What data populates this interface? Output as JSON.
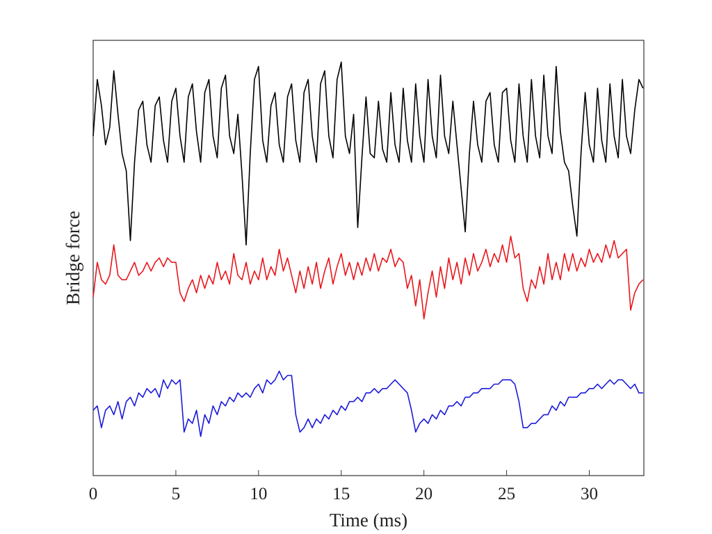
{
  "chart_data": {
    "type": "line",
    "title": "",
    "xlabel": "Time (ms)",
    "ylabel": "Bridge force",
    "xlim": [
      0,
      33.3
    ],
    "ylim": [
      0,
      10
    ],
    "grid": false,
    "legend": "none",
    "xticks": [
      0,
      5,
      10,
      15,
      20,
      25,
      30
    ],
    "xtick_labels": [
      "0",
      "5",
      "10",
      "15",
      "20",
      "25",
      "30"
    ],
    "x_start": 0,
    "x_step": 0.25,
    "series": [
      {
        "name": "black trace",
        "color": "#000000",
        "values": [
          7.8,
          9.1,
          8.5,
          7.6,
          8.0,
          9.3,
          8.3,
          7.4,
          7.0,
          5.4,
          7.2,
          8.4,
          8.6,
          7.6,
          7.2,
          8.5,
          8.7,
          7.7,
          7.2,
          8.6,
          8.9,
          7.8,
          7.2,
          8.7,
          9.0,
          7.9,
          7.2,
          8.8,
          9.1,
          7.8,
          7.3,
          8.9,
          9.2,
          7.8,
          7.4,
          8.3,
          6.9,
          5.3,
          7.4,
          9.1,
          9.4,
          7.7,
          7.2,
          8.5,
          8.8,
          7.6,
          7.2,
          8.7,
          9.0,
          7.7,
          7.2,
          8.8,
          9.1,
          7.8,
          7.2,
          9.0,
          9.3,
          7.8,
          7.3,
          9.1,
          9.5,
          7.8,
          7.4,
          8.3,
          5.7,
          7.3,
          8.7,
          7.4,
          7.3,
          8.6,
          7.5,
          7.2,
          8.8,
          7.6,
          7.2,
          8.9,
          7.7,
          7.2,
          9.0,
          7.8,
          7.2,
          9.1,
          7.8,
          7.3,
          9.2,
          7.8,
          7.4,
          8.6,
          7.6,
          6.6,
          5.6,
          7.4,
          8.6,
          7.6,
          7.2,
          8.6,
          8.8,
          7.6,
          7.2,
          8.8,
          8.9,
          7.7,
          7.2,
          9.0,
          7.8,
          7.2,
          9.1,
          7.8,
          7.3,
          9.2,
          7.8,
          7.4,
          9.4,
          7.9,
          7.2,
          7.0,
          6.2,
          5.5,
          7.4,
          8.8,
          7.6,
          7.2,
          8.9,
          7.7,
          7.2,
          9.0,
          7.8,
          7.3,
          9.1,
          7.8,
          7.4,
          8.4,
          9.1,
          8.9
        ]
      },
      {
        "name": "red trace",
        "color": "#e8161b",
        "values": [
          4.1,
          4.9,
          4.5,
          4.4,
          4.6,
          5.3,
          4.6,
          4.5,
          4.5,
          4.7,
          4.9,
          4.6,
          4.7,
          4.9,
          4.7,
          4.9,
          5.0,
          4.8,
          5.0,
          4.9,
          4.9,
          4.2,
          4.0,
          4.3,
          4.5,
          4.2,
          4.6,
          4.3,
          4.6,
          4.4,
          4.9,
          4.5,
          4.7,
          4.4,
          5.1,
          4.6,
          4.5,
          4.9,
          4.4,
          4.7,
          4.5,
          5.0,
          4.5,
          4.8,
          4.6,
          5.2,
          4.7,
          5.0,
          4.6,
          4.2,
          4.7,
          4.3,
          4.8,
          4.4,
          4.9,
          4.3,
          4.7,
          5.0,
          4.4,
          4.8,
          5.1,
          4.6,
          4.9,
          4.5,
          4.9,
          4.6,
          5.0,
          4.7,
          5.1,
          4.7,
          5.0,
          4.9,
          5.2,
          4.8,
          5.0,
          4.9,
          4.3,
          4.6,
          3.9,
          4.5,
          3.6,
          4.2,
          4.7,
          4.1,
          4.8,
          4.3,
          5.0,
          4.5,
          4.9,
          4.4,
          5.0,
          4.6,
          5.1,
          4.7,
          4.9,
          5.2,
          4.8,
          5.1,
          4.9,
          5.3,
          4.9,
          5.5,
          5.0,
          5.1,
          4.3,
          4.0,
          4.5,
          4.3,
          4.8,
          4.4,
          5.1,
          4.5,
          4.9,
          4.5,
          5.1,
          4.7,
          5.1,
          4.7,
          5.0,
          4.8,
          5.2,
          4.9,
          5.1,
          4.9,
          5.3,
          5.0,
          5.4,
          5.0,
          5.1,
          5.2,
          3.8,
          4.2,
          4.4,
          4.5
        ]
      },
      {
        "name": "blue trace",
        "color": "#1a1adb",
        "values": [
          1.5,
          1.6,
          1.1,
          1.5,
          1.6,
          1.4,
          1.7,
          1.3,
          1.7,
          1.8,
          1.6,
          1.9,
          1.8,
          2.0,
          1.9,
          2.0,
          1.8,
          2.2,
          2.0,
          2.2,
          2.1,
          2.2,
          1.0,
          1.3,
          1.2,
          1.5,
          0.9,
          1.4,
          1.2,
          1.6,
          1.4,
          1.7,
          1.6,
          1.8,
          1.7,
          1.9,
          1.8,
          1.9,
          1.8,
          2.0,
          2.1,
          1.9,
          2.2,
          2.1,
          2.2,
          2.4,
          2.2,
          2.3,
          2.3,
          1.4,
          1.0,
          1.1,
          1.3,
          1.1,
          1.3,
          1.2,
          1.4,
          1.3,
          1.5,
          1.4,
          1.6,
          1.5,
          1.7,
          1.7,
          1.8,
          1.7,
          1.9,
          1.9,
          2.0,
          1.9,
          2.0,
          2.0,
          2.1,
          2.2,
          2.1,
          2.0,
          1.9,
          1.5,
          1.0,
          1.2,
          1.3,
          1.2,
          1.4,
          1.3,
          1.5,
          1.4,
          1.6,
          1.6,
          1.7,
          1.6,
          1.8,
          1.8,
          1.9,
          1.9,
          2.0,
          2.0,
          2.0,
          2.1,
          2.1,
          2.2,
          2.2,
          2.2,
          2.1,
          1.7,
          1.1,
          1.1,
          1.2,
          1.2,
          1.3,
          1.4,
          1.4,
          1.6,
          1.5,
          1.7,
          1.6,
          1.8,
          1.8,
          1.8,
          1.9,
          1.9,
          2.0,
          2.0,
          2.1,
          2.0,
          2.1,
          2.2,
          2.1,
          2.2,
          2.2,
          2.1,
          2.0,
          2.1,
          1.9,
          1.9
        ]
      }
    ]
  }
}
